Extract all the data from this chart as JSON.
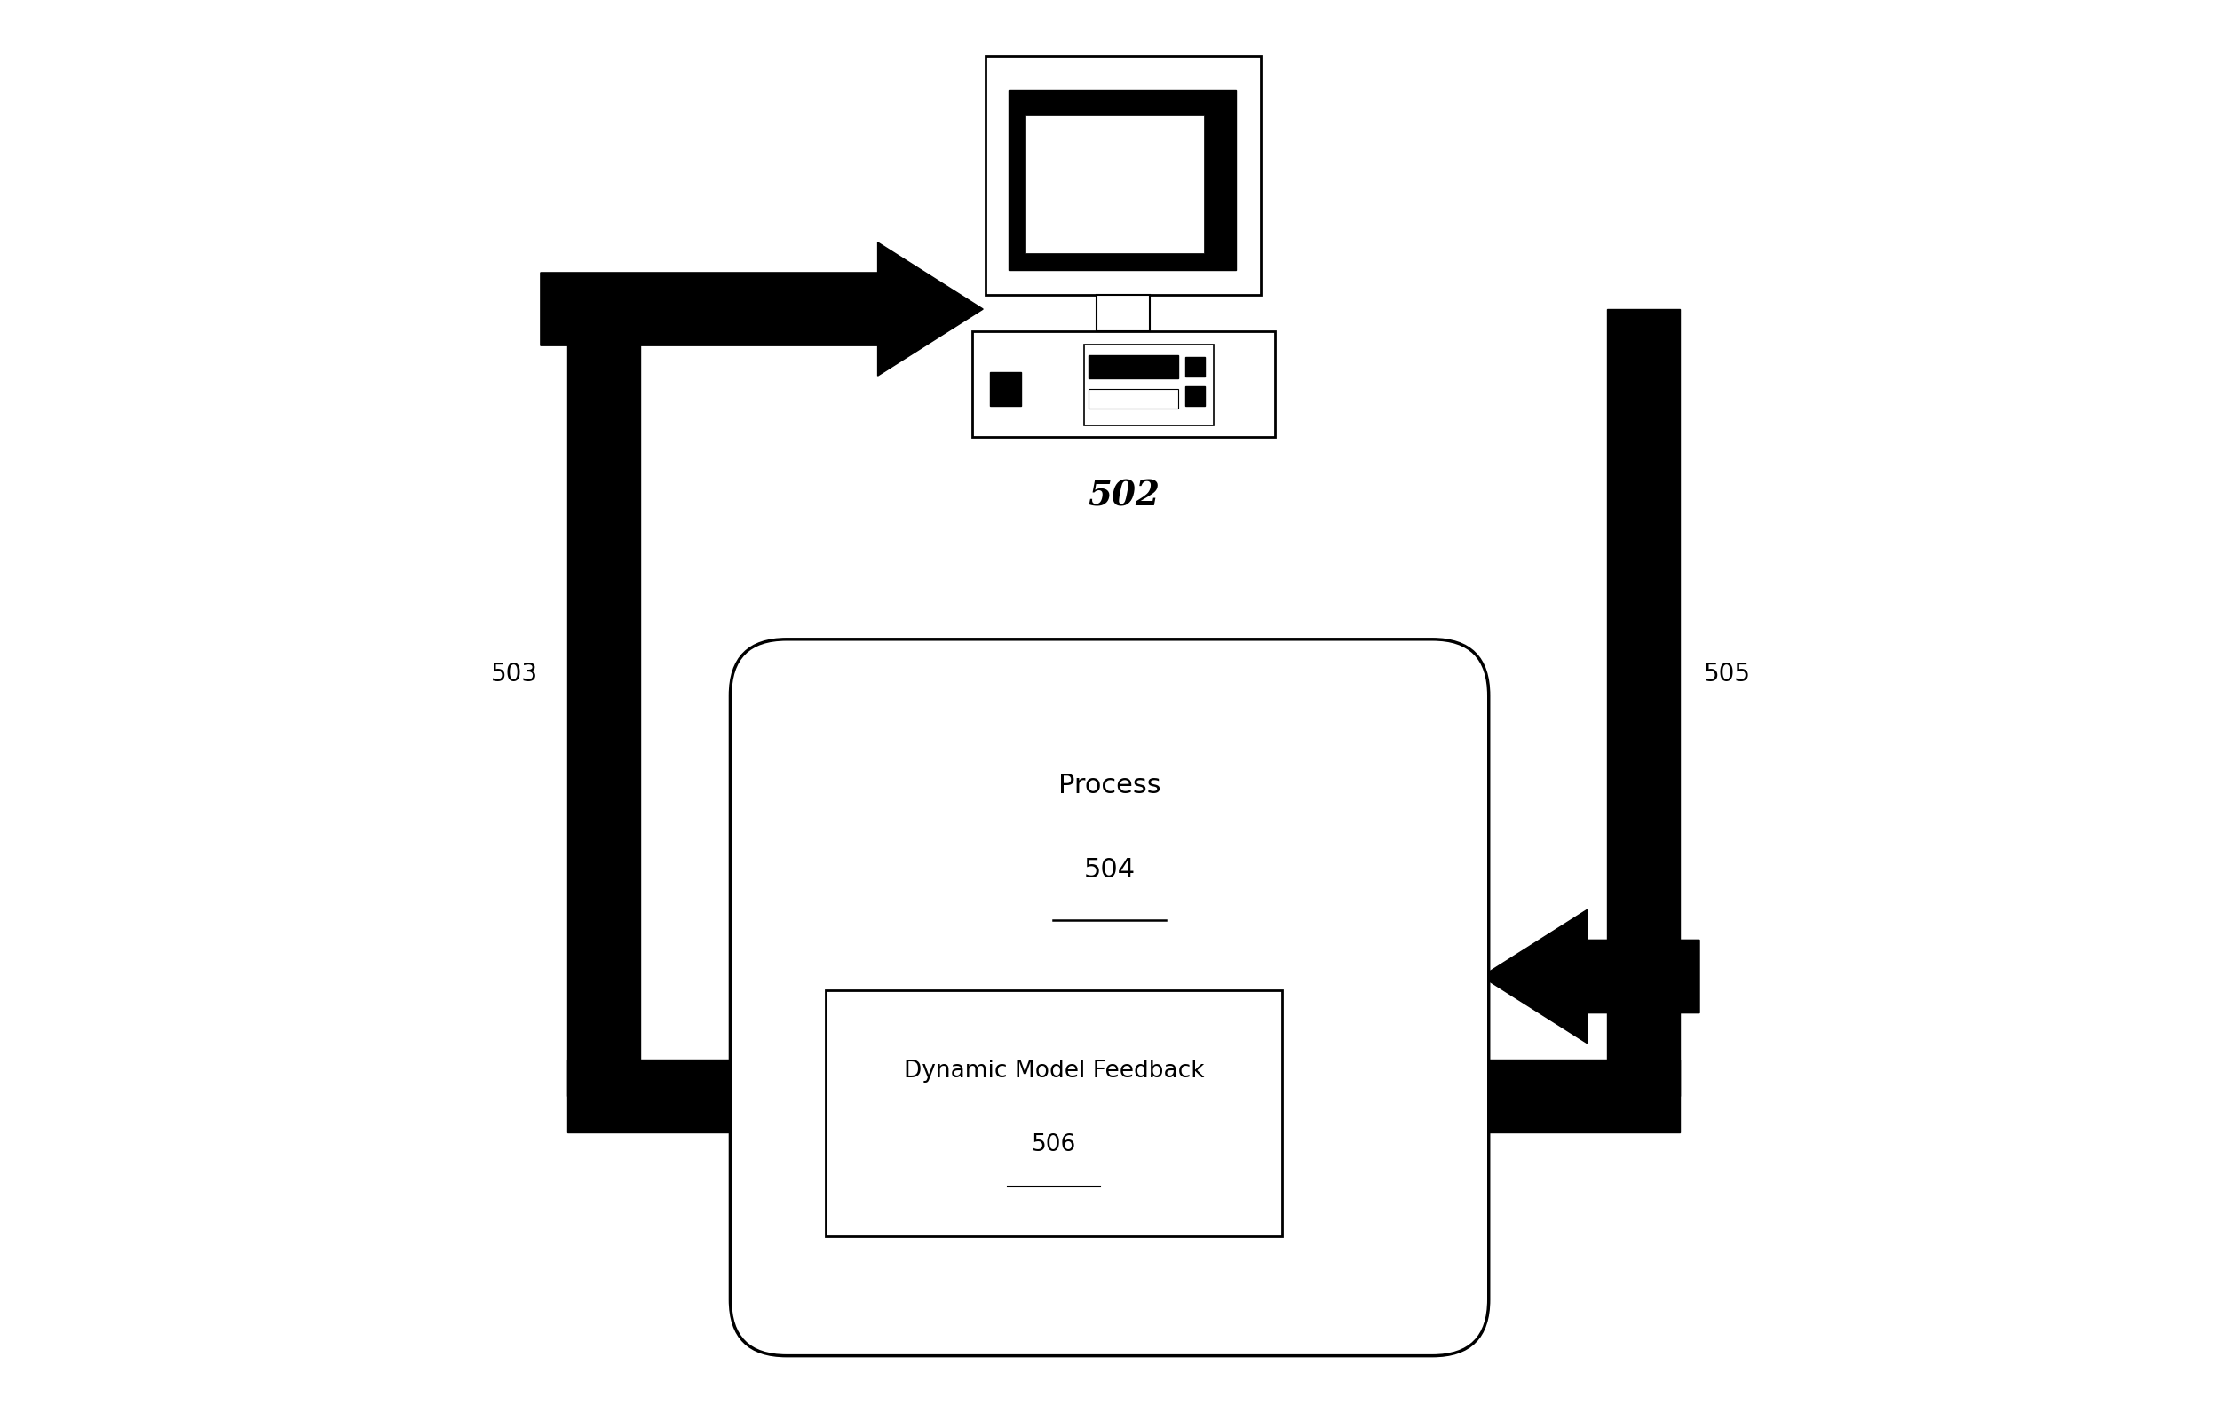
{
  "bg_color": "#ffffff",
  "fig_width": 25.15,
  "fig_height": 15.82,
  "label_503": "503",
  "label_502": "502",
  "label_504": "504",
  "label_505": "505",
  "label_506": "506",
  "text_process": "Process",
  "text_dmf": "Dynamic Model Feedback"
}
